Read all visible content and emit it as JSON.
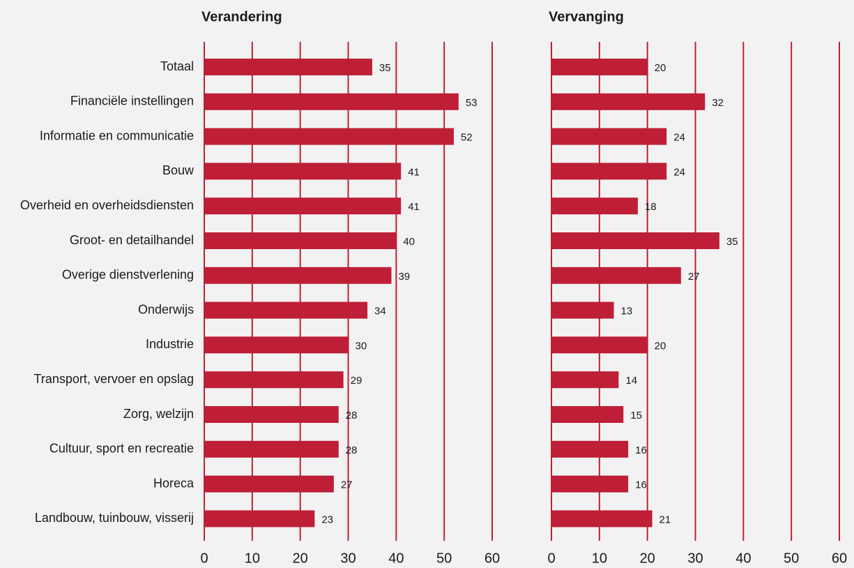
{
  "chart_data": [
    {
      "type": "bar",
      "orientation": "horizontal",
      "title": "Verandering",
      "categories": [
        "Totaal",
        "Financiële instellingen",
        "Informatie en communicatie",
        "Bouw",
        "Overheid en overheidsdiensten",
        "Groot- en detailhandel",
        "Overige dienstverlening",
        "Onderwijs",
        "Industrie",
        "Transport, vervoer en opslag",
        "Zorg, welzijn",
        "Cultuur, sport en recreatie",
        "Horeca",
        "Landbouw, tuinbouw, visserij"
      ],
      "values": [
        35,
        53,
        52,
        41,
        41,
        40,
        39,
        34,
        30,
        29,
        28,
        28,
        27,
        23
      ],
      "color": "#be1e36",
      "xlim": [
        0,
        60
      ],
      "xticks": [
        0,
        10,
        20,
        30,
        40,
        50,
        60
      ],
      "grid": true
    },
    {
      "type": "bar",
      "orientation": "horizontal",
      "title": "Vervanging",
      "values": [
        20,
        32,
        24,
        24,
        18,
        35,
        27,
        13,
        20,
        14,
        15,
        16,
        16,
        21
      ],
      "color": "#be1e36",
      "xlim": [
        0,
        60
      ],
      "xticks": [
        0,
        10,
        20,
        30,
        40,
        50,
        60
      ],
      "grid": true
    }
  ]
}
